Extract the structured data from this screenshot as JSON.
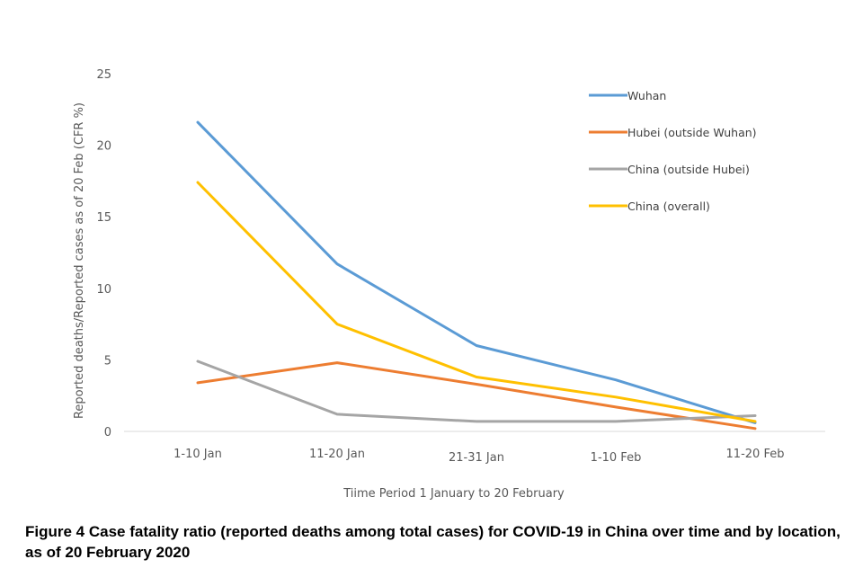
{
  "chart_data": {
    "type": "line",
    "title": "",
    "xlabel": "Tiime Period 1 January to 20 February",
    "ylabel": "Reported  deaths/Reported  cases as of 20 Feb (CFR %)",
    "categories": [
      "1-10 Jan",
      "11-20 Jan",
      "21-31 Jan",
      "1-10 Feb",
      "11-20 Feb"
    ],
    "ylim": [
      0,
      25
    ],
    "yticks": [
      0,
      5,
      10,
      15,
      20,
      25
    ],
    "grid": false,
    "legend_position": "top-right",
    "series": [
      {
        "name": "Wuhan",
        "color": "#5B9BD5",
        "values": [
          21.6,
          11.7,
          6.0,
          3.6,
          0.6
        ]
      },
      {
        "name": "Hubei (outside Wuhan)",
        "color": "#ED7D31",
        "values": [
          3.4,
          4.8,
          3.3,
          1.7,
          0.2
        ]
      },
      {
        "name": "China (outside Hubei)",
        "color": "#A5A5A5",
        "values": [
          4.9,
          1.2,
          0.7,
          0.7,
          1.1
        ]
      },
      {
        "name": "China (overall)",
        "color": "#FFC000",
        "values": [
          17.4,
          7.5,
          3.8,
          2.4,
          0.7
        ]
      }
    ]
  },
  "caption": "Figure 4 Case fatality ratio (reported deaths among total cases) for COVID-19 in China over time and by location, as of 20 February 2020"
}
